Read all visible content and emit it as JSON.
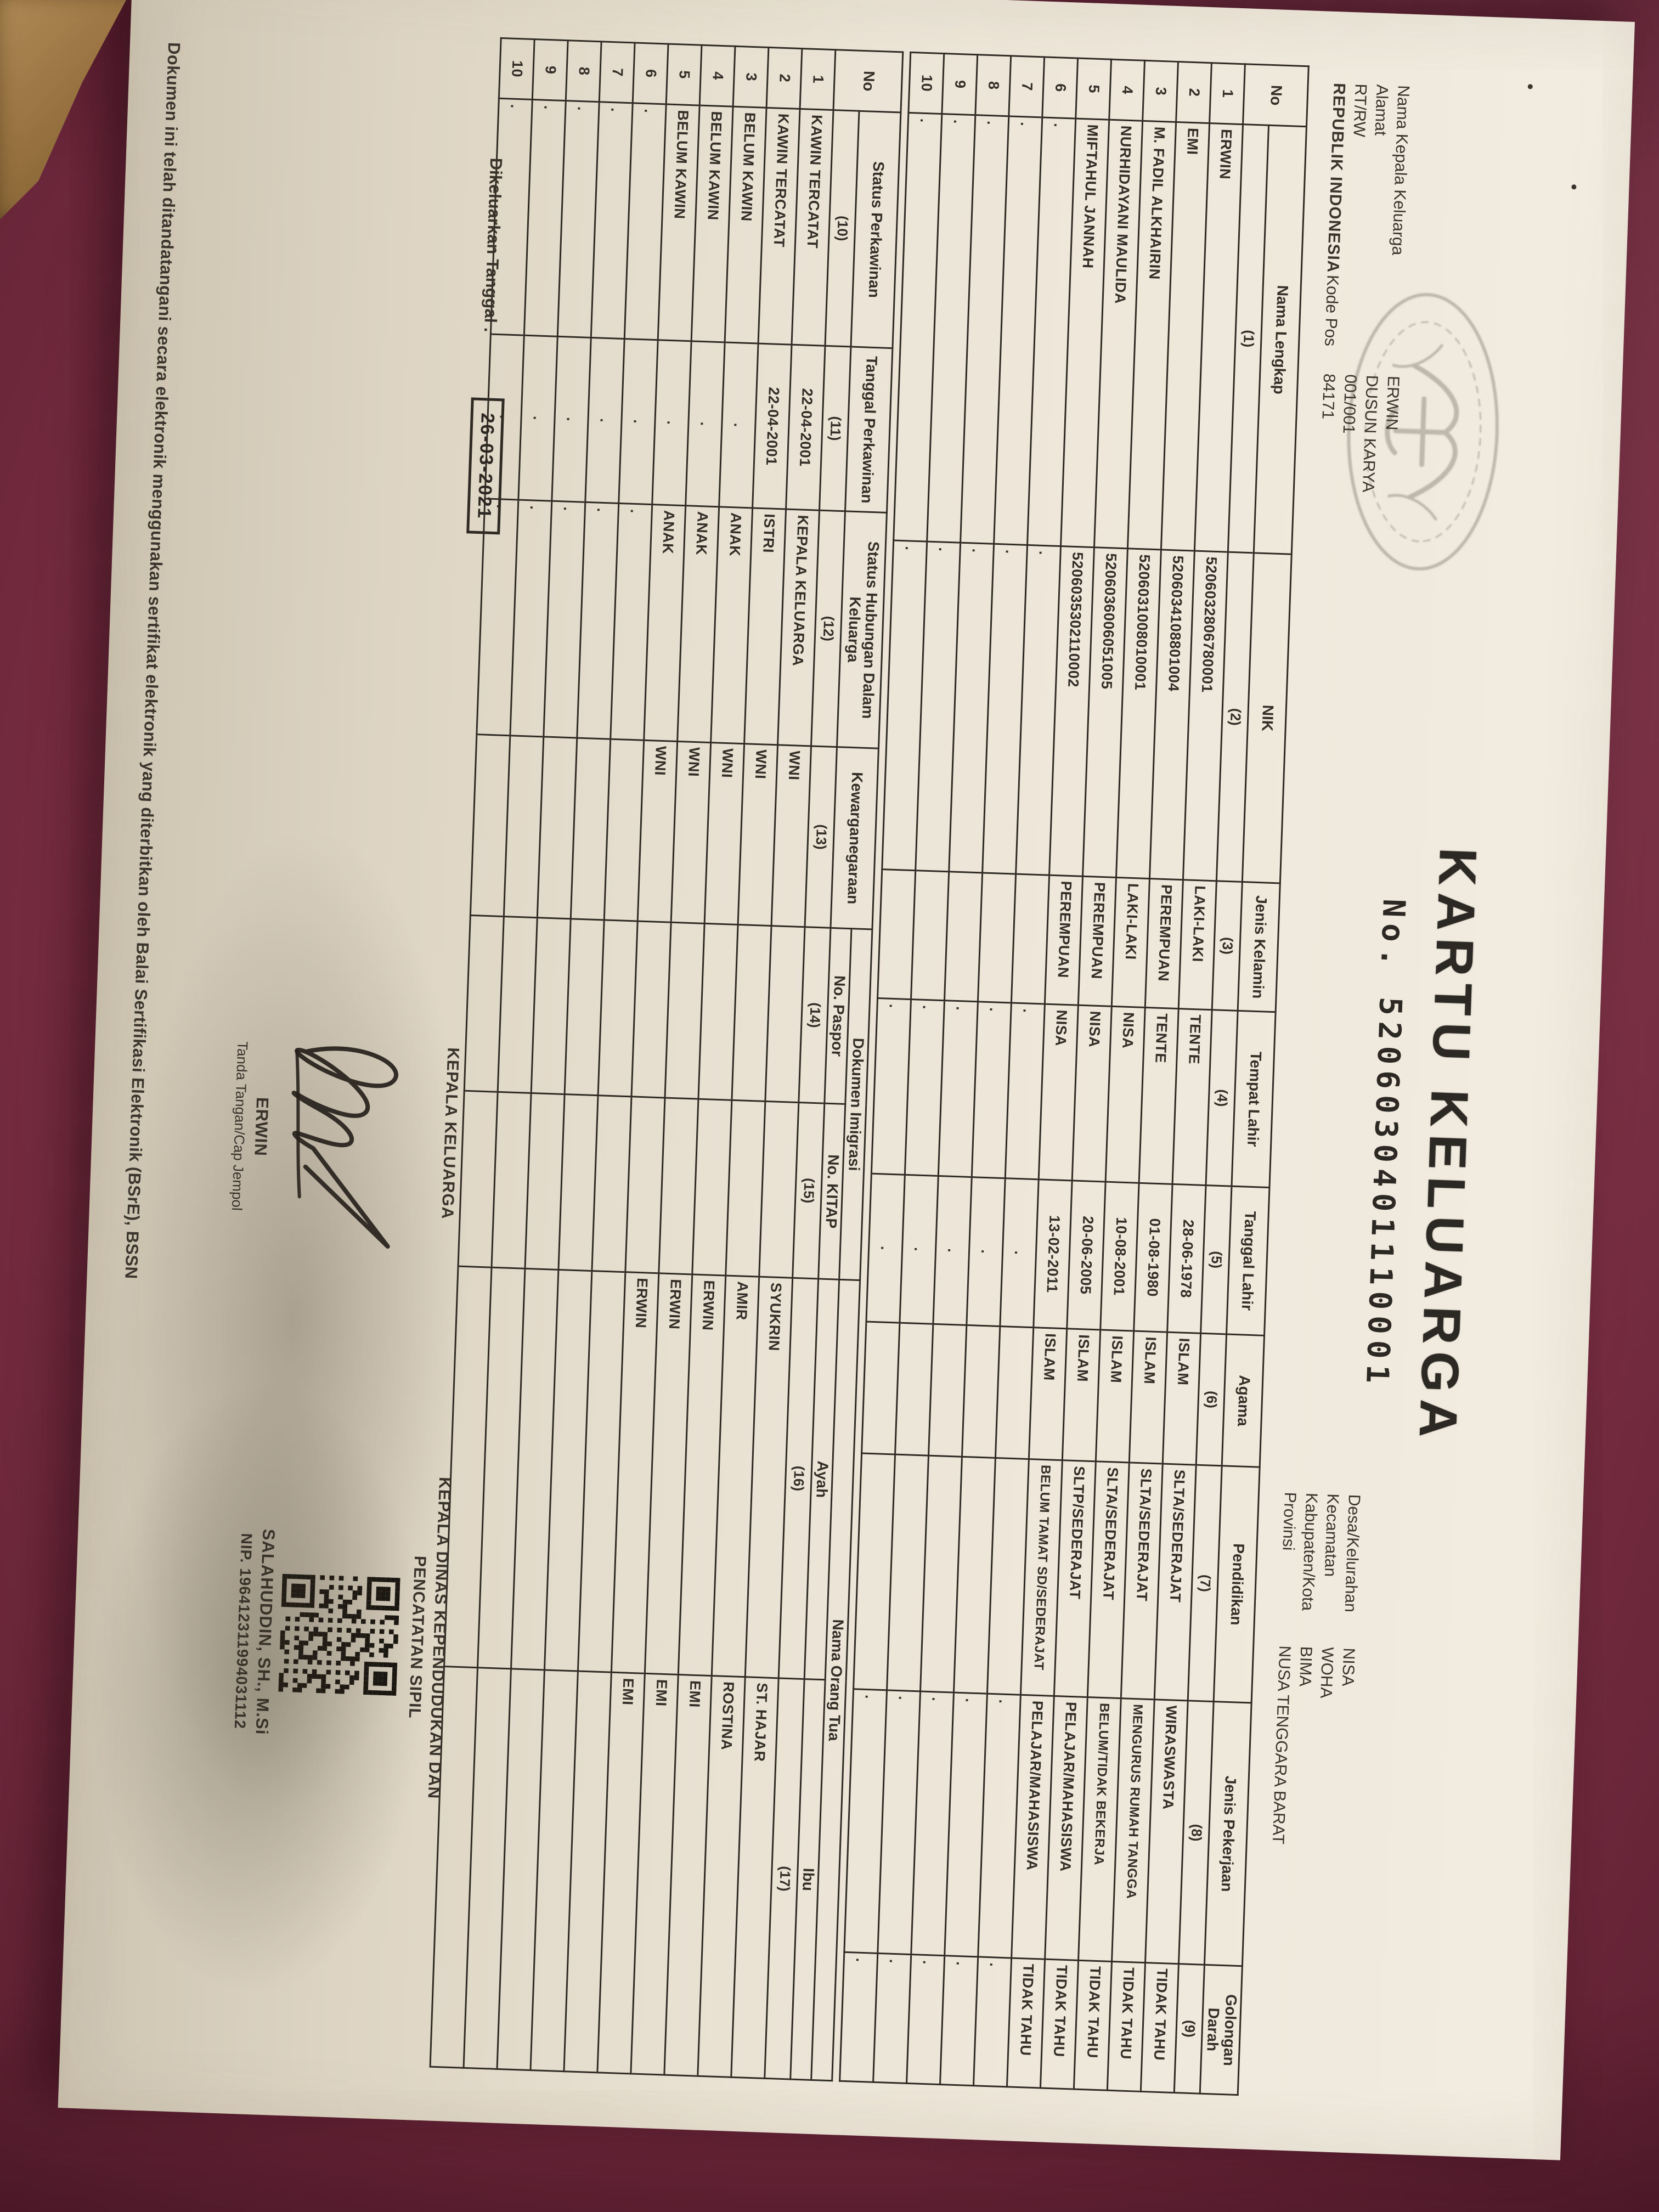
{
  "photo": {
    "background_color": "#7e2f45",
    "paper_color": "#ece5d7",
    "ink_color": "#2f2a24"
  },
  "document": {
    "title": "KARTU KELUARGA",
    "number_label": "No.",
    "number": "5206030401110001",
    "header_left": [
      {
        "prefix": "",
        "label": "Nama Kepala Keluarga",
        "value": "ERWIN"
      },
      {
        "prefix": "",
        "label": "Alamat",
        "value": "DUSUN KARYA"
      },
      {
        "prefix": "",
        "label": "RT/RW",
        "value": "001/001"
      },
      {
        "prefix": "REPUBLIK INDONESIA",
        "label": "Kode Pos",
        "value": "84171"
      }
    ],
    "header_right": [
      {
        "label": "Desa/Kelurahan",
        "value": "NISA"
      },
      {
        "label": "Kecamatan",
        "value": "WOHA"
      },
      {
        "label": "Kabupaten/Kota",
        "value": "BIMA"
      },
      {
        "label": "Provinsi",
        "value": "NUSA TENGGARA BARAT"
      }
    ],
    "table1": {
      "columns": [
        "No",
        "Nama Lengkap",
        "NIK",
        "Jenis Kelamin",
        "Tempat Lahir",
        "Tanggal Lahir",
        "Agama",
        "Pendidikan",
        "Jenis Pekerjaan",
        "Golongan Darah"
      ],
      "column_numbers": [
        "",
        "(1)",
        "(2)",
        "(3)",
        "(4)",
        "(5)",
        "(6)",
        "(7)",
        "(8)",
        "(9)"
      ],
      "rows": [
        [
          "1",
          "ERWIN",
          "5206032806780001",
          "LAKI-LAKI",
          "TENTE",
          "28-06-1978",
          "ISLAM",
          "SLTA/SEDERAJAT",
          "WIRASWASTA",
          "TIDAK TAHU"
        ],
        [
          "2",
          "EMI",
          "5206034108801004",
          "PEREMPUAN",
          "TENTE",
          "01-08-1980",
          "ISLAM",
          "SLTA/SEDERAJAT",
          "MENGURUS RUMAH TANGGA",
          "TIDAK TAHU"
        ],
        [
          "3",
          "M. FADIL ALKHAIRIN",
          "5206031008010001",
          "LAKI-LAKI",
          "NISA",
          "10-08-2001",
          "ISLAM",
          "SLTA/SEDERAJAT",
          "BELUM/TIDAK BEKERJA",
          "TIDAK TAHU"
        ],
        [
          "4",
          "NURHIDAYANI MAULIDA",
          "5206036006051005",
          "PEREMPUAN",
          "NISA",
          "20-06-2005",
          "ISLAM",
          "SLTP/SEDERAJAT",
          "PELAJAR/MAHASISWA",
          "TIDAK TAHU"
        ],
        [
          "5",
          "MIFTAHUL JANNAH",
          "5206035302110002",
          "PEREMPUAN",
          "NISA",
          "13-02-2011",
          "ISLAM",
          "BELUM TAMAT SD/SEDERAJAT",
          "PELAJAR/MAHASISWA",
          "TIDAK TAHU"
        ],
        [
          "6",
          ".",
          ".",
          "",
          ".",
          ".",
          "",
          "",
          ".",
          "."
        ],
        [
          "7",
          ".",
          ".",
          "",
          ".",
          ".",
          "",
          "",
          ".",
          "."
        ],
        [
          "8",
          ".",
          ".",
          "",
          ".",
          ".",
          "",
          "",
          ".",
          "."
        ],
        [
          "9",
          ".",
          ".",
          "",
          ".",
          ".",
          "",
          "",
          ".",
          "."
        ],
        [
          "10",
          ".",
          ".",
          "",
          ".",
          ".",
          "",
          "",
          ".",
          "."
        ]
      ]
    },
    "table2": {
      "no_header": "No",
      "single_columns": [
        "Status Perkawinan",
        "Tanggal Perkawinan",
        "Status Hubungan Dalam Keluarga",
        "Kewarganegaraan"
      ],
      "group_columns": [
        {
          "label": "Dokumen Imigrasi",
          "children": [
            "No. Paspor",
            "No. KITAP"
          ]
        },
        {
          "label": "Nama Orang Tua",
          "children": [
            "Ayah",
            "Ibu"
          ]
        }
      ],
      "column_numbers": [
        "(10)",
        "(11)",
        "(12)",
        "(13)",
        "(14)",
        "(15)",
        "(16)",
        "(17)"
      ],
      "rows": [
        [
          "1",
          "KAWIN TERCATAT",
          "22-04-2001",
          "KEPALA KELUARGA",
          "WNI",
          "",
          "",
          "SYUKRIN",
          "ST. HAJAR"
        ],
        [
          "2",
          "KAWIN TERCATAT",
          "22-04-2001",
          "ISTRI",
          "WNI",
          "",
          "",
          "AMIR",
          "ROSTINA"
        ],
        [
          "3",
          "BELUM KAWIN",
          ".",
          "ANAK",
          "WNI",
          "",
          "",
          "ERWIN",
          "EMI"
        ],
        [
          "4",
          "BELUM KAWIN",
          ".",
          "ANAK",
          "WNI",
          "",
          "",
          "ERWIN",
          "EMI"
        ],
        [
          "5",
          "BELUM KAWIN",
          ".",
          "ANAK",
          "WNI",
          "",
          "",
          "ERWIN",
          "EMI"
        ],
        [
          "6",
          ".",
          ".",
          ".",
          "",
          "",
          "",
          "",
          ""
        ],
        [
          "7",
          ".",
          ".",
          ".",
          "",
          "",
          "",
          "",
          ""
        ],
        [
          "8",
          ".",
          ".",
          ".",
          "",
          "",
          "",
          "",
          ""
        ],
        [
          "9",
          ".",
          ".",
          ".",
          "",
          "",
          "",
          "",
          ""
        ],
        [
          "10",
          ".",
          ".",
          ".",
          "",
          "",
          "",
          "",
          ""
        ]
      ]
    },
    "issued": {
      "label": "Dikeluarkan Tanggal .",
      "date": "26-03-2021"
    },
    "sign_left": {
      "title": "KEPALA KELUARGA",
      "name": "ERWIN",
      "caption": "Tanda Tangan/Cap Jempol"
    },
    "sign_right": {
      "title_line1": "KEPALA DINAS KEPENDUDUKAN DAN",
      "title_line2": "PENCATATAN SIPIL",
      "name": "SALAHUDDIN, SH., M.Si",
      "nip": "NIP. 196412311994031112"
    },
    "footer": "Dokumen ini telah ditandatangani secara elektronik menggunakan sertifikat elektronik yang diterbitkan oleh Balai Sertifikasi Elektronik (BSrE), BSSN",
    "icons": {
      "garuda_stamp": "garuda-stamp-icon",
      "signature": "signature-icon",
      "qr": "qr-code-icon"
    }
  }
}
